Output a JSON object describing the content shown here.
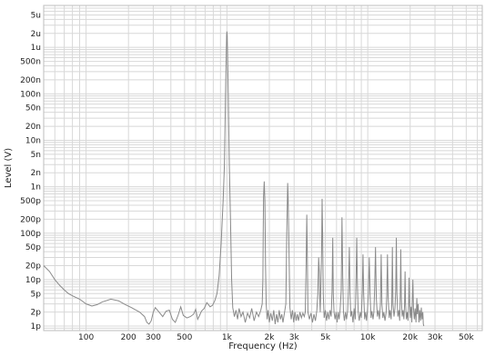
{
  "chart_data": {
    "type": "line",
    "xlabel": "Frequency (Hz)",
    "ylabel": "Level (V)",
    "x_scale": "log",
    "y_scale": "log",
    "xlim": [
      50,
      65000
    ],
    "ylim": [
      8e-13,
      8e-06
    ],
    "x_ticks": [
      {
        "value": 100,
        "label": "100"
      },
      {
        "value": 200,
        "label": "200"
      },
      {
        "value": 300,
        "label": "300"
      },
      {
        "value": 500,
        "label": "500"
      },
      {
        "value": 1000,
        "label": "1k"
      },
      {
        "value": 2000,
        "label": "2k"
      },
      {
        "value": 3000,
        "label": "3k"
      },
      {
        "value": 5000,
        "label": "5k"
      },
      {
        "value": 10000,
        "label": "10k"
      },
      {
        "value": 20000,
        "label": "20k"
      },
      {
        "value": 30000,
        "label": "30k"
      },
      {
        "value": 50000,
        "label": "50k"
      }
    ],
    "y_ticks": [
      {
        "value": 5e-06,
        "label": "5u"
      },
      {
        "value": 2e-06,
        "label": "2u"
      },
      {
        "value": 1e-06,
        "label": "1u"
      },
      {
        "value": 5e-07,
        "label": "500n"
      },
      {
        "value": 2e-07,
        "label": "200n"
      },
      {
        "value": 1e-07,
        "label": "100n"
      },
      {
        "value": 5e-08,
        "label": "50n"
      },
      {
        "value": 2e-08,
        "label": "20n"
      },
      {
        "value": 1e-08,
        "label": "10n"
      },
      {
        "value": 5e-09,
        "label": "5n"
      },
      {
        "value": 2e-09,
        "label": "2n"
      },
      {
        "value": 1e-09,
        "label": "1n"
      },
      {
        "value": 5e-10,
        "label": "500p"
      },
      {
        "value": 2e-10,
        "label": "200p"
      },
      {
        "value": 1e-10,
        "label": "100p"
      },
      {
        "value": 5e-11,
        "label": "50p"
      },
      {
        "value": 2e-11,
        "label": "20p"
      },
      {
        "value": 1e-11,
        "label": "10p"
      },
      {
        "value": 5e-12,
        "label": "5p"
      },
      {
        "value": 2e-12,
        "label": "2p"
      },
      {
        "value": 1e-12,
        "label": "1p"
      }
    ],
    "grid": true,
    "line_color": "#8a8a8a",
    "grid_color": "#d8d8d8",
    "series": [
      {
        "points": [
          [
            50,
            2e-11
          ],
          [
            55,
            1.5e-11
          ],
          [
            60,
            1e-11
          ],
          [
            65,
            7.5e-12
          ],
          [
            70,
            6e-12
          ],
          [
            75,
            5e-12
          ],
          [
            80,
            4.5e-12
          ],
          [
            90,
            3.8e-12
          ],
          [
            100,
            3e-12
          ],
          [
            110,
            2.7e-12
          ],
          [
            120,
            2.9e-12
          ],
          [
            130,
            3.3e-12
          ],
          [
            150,
            3.8e-12
          ],
          [
            170,
            3.5e-12
          ],
          [
            190,
            2.9e-12
          ],
          [
            210,
            2.5e-12
          ],
          [
            240,
            2e-12
          ],
          [
            260,
            1.6e-12
          ],
          [
            270,
            1.2e-12
          ],
          [
            280,
            1.1e-12
          ],
          [
            290,
            1.3e-12
          ],
          [
            300,
            2e-12
          ],
          [
            310,
            2.5e-12
          ],
          [
            330,
            2e-12
          ],
          [
            350,
            1.6e-12
          ],
          [
            370,
            2.1e-12
          ],
          [
            390,
            2.2e-12
          ],
          [
            410,
            1.4e-12
          ],
          [
            430,
            1.2e-12
          ],
          [
            450,
            1.7e-12
          ],
          [
            470,
            2.6e-12
          ],
          [
            490,
            1.7e-12
          ],
          [
            520,
            1.5e-12
          ],
          [
            550,
            1.6e-12
          ],
          [
            580,
            1.8e-12
          ],
          [
            600,
            2.3e-12
          ],
          [
            620,
            1.4e-12
          ],
          [
            640,
            1.7e-12
          ],
          [
            660,
            2.1e-12
          ],
          [
            690,
            2.4e-12
          ],
          [
            720,
            3.2e-12
          ],
          [
            760,
            2.6e-12
          ],
          [
            790,
            2.8e-12
          ],
          [
            820,
            3.5e-12
          ],
          [
            850,
            5e-12
          ],
          [
            880,
            1.2e-11
          ],
          [
            910,
            6e-11
          ],
          [
            940,
            5e-10
          ],
          [
            960,
            3e-09
          ],
          [
            980,
            1.5e-07
          ],
          [
            995,
            1.8e-06
          ],
          [
            1000,
            2.2e-06
          ],
          [
            1005,
            1.8e-06
          ],
          [
            1020,
            1.5e-07
          ],
          [
            1040,
            3e-09
          ],
          [
            1060,
            2e-10
          ],
          [
            1080,
            1e-11
          ],
          [
            1100,
            2.5e-12
          ],
          [
            1130,
            1.6e-12
          ],
          [
            1160,
            2.2e-12
          ],
          [
            1190,
            1.4e-12
          ],
          [
            1220,
            2.4e-12
          ],
          [
            1260,
            1.6e-12
          ],
          [
            1300,
            2e-12
          ],
          [
            1350,
            1.2e-12
          ],
          [
            1400,
            1.9e-12
          ],
          [
            1450,
            1.5e-12
          ],
          [
            1500,
            2.4e-12
          ],
          [
            1560,
            1.3e-12
          ],
          [
            1620,
            2e-12
          ],
          [
            1680,
            1.6e-12
          ],
          [
            1740,
            2.2e-12
          ],
          [
            1780,
            3e-12
          ],
          [
            1800,
            1e-11
          ],
          [
            1810,
            1e-10
          ],
          [
            1820,
            6e-10
          ],
          [
            1840,
            1.3e-09
          ],
          [
            1860,
            5e-10
          ],
          [
            1880,
            2e-11
          ],
          [
            1900,
            3e-12
          ],
          [
            1930,
            1.4e-12
          ],
          [
            1960,
            2.2e-12
          ],
          [
            2000,
            1.2e-12
          ],
          [
            2050,
            1.9e-12
          ],
          [
            2100,
            1.3e-12
          ],
          [
            2150,
            2.2e-12
          ],
          [
            2200,
            1.1e-12
          ],
          [
            2250,
            1.8e-12
          ],
          [
            2300,
            1.2e-12
          ],
          [
            2350,
            2.2e-12
          ],
          [
            2400,
            1.4e-12
          ],
          [
            2450,
            1.8e-12
          ],
          [
            2500,
            1.2e-12
          ],
          [
            2560,
            1.9e-12
          ],
          [
            2620,
            3e-12
          ],
          [
            2660,
            1e-10
          ],
          [
            2700,
            1.2e-09
          ],
          [
            2720,
            6e-10
          ],
          [
            2760,
            4e-11
          ],
          [
            2800,
            2.5e-12
          ],
          [
            2860,
            1.4e-12
          ],
          [
            2920,
            2.2e-12
          ],
          [
            2980,
            1.2e-12
          ],
          [
            3040,
            2e-12
          ],
          [
            3100,
            1.3e-12
          ],
          [
            3160,
            1.8e-12
          ],
          [
            3220,
            1.3e-12
          ],
          [
            3300,
            2e-12
          ],
          [
            3380,
            1.5e-12
          ],
          [
            3460,
            1.9e-12
          ],
          [
            3540,
            1.6e-12
          ],
          [
            3600,
            2e-12
          ],
          [
            3650,
            2e-11
          ],
          [
            3690,
            2.5e-10
          ],
          [
            3720,
            4e-11
          ],
          [
            3760,
            2e-12
          ],
          [
            3850,
            1.4e-12
          ],
          [
            3950,
            1.9e-12
          ],
          [
            4050,
            1.2e-12
          ],
          [
            4150,
            1.8e-12
          ],
          [
            4250,
            1.3e-12
          ],
          [
            4350,
            2.2e-12
          ],
          [
            4420,
            5e-12
          ],
          [
            4480,
            3e-11
          ],
          [
            4530,
            1.5e-11
          ],
          [
            4560,
            4e-12
          ],
          [
            4600,
            2e-12
          ],
          [
            4650,
            1e-11
          ],
          [
            4700,
            4e-11
          ],
          [
            4740,
            5.5e-10
          ],
          [
            4780,
            1e-10
          ],
          [
            4830,
            5e-12
          ],
          [
            4900,
            1.5e-12
          ],
          [
            5000,
            2.2e-12
          ],
          [
            5100,
            1.3e-12
          ],
          [
            5200,
            2e-12
          ],
          [
            5300,
            1.4e-12
          ],
          [
            5400,
            2.2e-12
          ],
          [
            5500,
            1.6e-12
          ],
          [
            5580,
            6e-12
          ],
          [
            5640,
            8e-11
          ],
          [
            5690,
            5e-12
          ],
          [
            5760,
            2e-12
          ],
          [
            5860,
            1.4e-12
          ],
          [
            5960,
            2e-12
          ],
          [
            6060,
            1.2e-12
          ],
          [
            6160,
            2e-12
          ],
          [
            6260,
            1.4e-12
          ],
          [
            6360,
            2.2e-12
          ],
          [
            6480,
            6e-12
          ],
          [
            6560,
            2.2e-10
          ],
          [
            6640,
            1.2e-11
          ],
          [
            6720,
            2e-12
          ],
          [
            6820,
            1.3e-12
          ],
          [
            6950,
            2e-12
          ],
          [
            7070,
            1.4e-12
          ],
          [
            7200,
            2.2e-12
          ],
          [
            7300,
            7e-12
          ],
          [
            7400,
            5e-11
          ],
          [
            7480,
            5e-12
          ],
          [
            7580,
            1.6e-12
          ],
          [
            7700,
            2.1e-12
          ],
          [
            7850,
            1.2e-12
          ],
          [
            8000,
            2.4e-12
          ],
          [
            8150,
            1.4e-12
          ],
          [
            8260,
            1e-11
          ],
          [
            8350,
            8e-11
          ],
          [
            8440,
            8e-12
          ],
          [
            8550,
            2e-12
          ],
          [
            8700,
            1.3e-12
          ],
          [
            8850,
            2e-12
          ],
          [
            9000,
            1.5e-12
          ],
          [
            9150,
            6e-12
          ],
          [
            9250,
            3.5e-11
          ],
          [
            9350,
            5e-12
          ],
          [
            9500,
            1.4e-12
          ],
          [
            9650,
            2e-12
          ],
          [
            9800,
            1.3e-12
          ],
          [
            9950,
            2.2e-12
          ],
          [
            10100,
            5e-12
          ],
          [
            10250,
            3e-11
          ],
          [
            10400,
            4e-12
          ],
          [
            10550,
            1.5e-12
          ],
          [
            10700,
            2.1e-12
          ],
          [
            10900,
            1.4e-12
          ],
          [
            11050,
            2e-12
          ],
          [
            11200,
            7e-12
          ],
          [
            11350,
            5e-11
          ],
          [
            11500,
            4e-12
          ],
          [
            11700,
            1.6e-12
          ],
          [
            11900,
            2.2e-12
          ],
          [
            12100,
            1.4e-12
          ],
          [
            12300,
            3e-12
          ],
          [
            12450,
            3.5e-11
          ],
          [
            12600,
            3e-12
          ],
          [
            12800,
            1.5e-12
          ],
          [
            13000,
            2e-12
          ],
          [
            13250,
            1.3e-12
          ],
          [
            13500,
            2e-12
          ],
          [
            13650,
            5e-12
          ],
          [
            13800,
            3.5e-11
          ],
          [
            13950,
            4e-12
          ],
          [
            14200,
            1.5e-12
          ],
          [
            14400,
            2.2e-12
          ],
          [
            14650,
            1.4e-12
          ],
          [
            14800,
            3e-12
          ],
          [
            14950,
            5e-11
          ],
          [
            15100,
            3e-12
          ],
          [
            15350,
            1.6e-12
          ],
          [
            15600,
            2.4e-12
          ],
          [
            15800,
            6e-12
          ],
          [
            15950,
            8e-11
          ],
          [
            16100,
            5e-12
          ],
          [
            16350,
            1.6e-12
          ],
          [
            16600,
            2.2e-12
          ],
          [
            16850,
            1.3e-12
          ],
          [
            17000,
            4e-12
          ],
          [
            17150,
            4.5e-11
          ],
          [
            17300,
            4e-12
          ],
          [
            17550,
            1.6e-12
          ],
          [
            17800,
            2.2e-12
          ],
          [
            18050,
            1.4e-12
          ],
          [
            18250,
            3e-12
          ],
          [
            18400,
            1.5e-11
          ],
          [
            18550,
            3e-12
          ],
          [
            18800,
            1.4e-12
          ],
          [
            19050,
            2e-12
          ],
          [
            19300,
            1.3e-12
          ],
          [
            19500,
            3e-12
          ],
          [
            19650,
            1.1e-11
          ],
          [
            19800,
            3e-12
          ],
          [
            20050,
            1.5e-12
          ],
          [
            20300,
            2.6e-12
          ],
          [
            20550,
            1.2e-12
          ],
          [
            20700,
            3.5e-12
          ],
          [
            20900,
            1e-11
          ],
          [
            21100,
            2.5e-12
          ],
          [
            21400,
            1.4e-12
          ],
          [
            21700,
            2.4e-12
          ],
          [
            22000,
            1.2e-12
          ],
          [
            22300,
            4e-12
          ],
          [
            22500,
            1.8e-12
          ],
          [
            22800,
            3e-12
          ],
          [
            23100,
            1.2e-12
          ],
          [
            23400,
            2.2e-12
          ],
          [
            23700,
            1.3e-12
          ],
          [
            24000,
            2.5e-12
          ],
          [
            24300,
            1.4e-12
          ],
          [
            24600,
            2e-12
          ],
          [
            24800,
            1.1e-12
          ],
          [
            25000,
            1e-12
          ]
        ]
      }
    ]
  }
}
